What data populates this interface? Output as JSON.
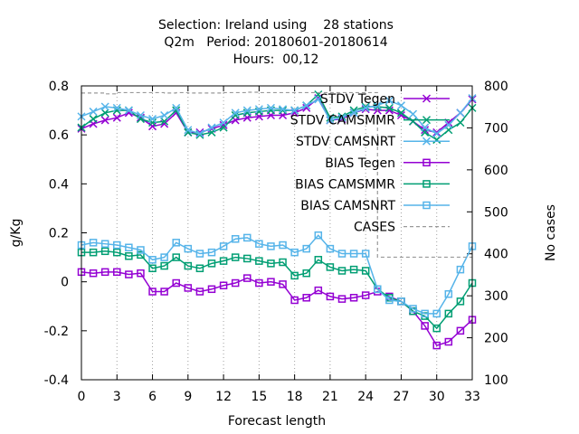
{
  "chart_data": {
    "type": "line",
    "title_lines": [
      "Selection: Ireland using    28 stations",
      "Q2m   Period: 20180601-20180614",
      "Hours:  00,12"
    ],
    "xlabel": "Forecast length",
    "ylabel": "g/Kg",
    "y2label": "No cases",
    "xlim": [
      0,
      33
    ],
    "ylim": [
      -0.4,
      0.8
    ],
    "y2lim": [
      100,
      800
    ],
    "x_ticks": [
      0,
      3,
      6,
      9,
      12,
      15,
      18,
      21,
      24,
      27,
      30,
      33
    ],
    "x_tick_labels": [
      "0",
      "3",
      "6",
      "9",
      "12",
      "15",
      "18",
      "21",
      "24",
      "27",
      "30",
      "33"
    ],
    "y_ticks": [
      -0.4,
      -0.2,
      0,
      0.2,
      0.4,
      0.6,
      0.8
    ],
    "y_tick_labels": [
      "-0.4",
      "-0.2",
      "0",
      "0.2",
      "0.4",
      "0.6",
      "0.8"
    ],
    "y2_ticks": [
      100,
      200,
      300,
      400,
      500,
      600,
      700,
      800
    ],
    "y2_tick_labels": [
      "100",
      "200",
      "300",
      "400",
      "500",
      "600",
      "700",
      "800"
    ],
    "legend_position": "top-right",
    "x": [
      0,
      1,
      2,
      3,
      4,
      5,
      6,
      7,
      8,
      9,
      10,
      11,
      12,
      13,
      14,
      15,
      16,
      17,
      18,
      19,
      20,
      21,
      22,
      23,
      24,
      25,
      26,
      27,
      28,
      29,
      30,
      31,
      32,
      33
    ],
    "series": [
      {
        "name": "STDV Tegen",
        "color": "#9400d3",
        "marker": "x",
        "axis": "y",
        "values": [
          0.625,
          0.645,
          0.66,
          0.67,
          0.69,
          0.67,
          0.635,
          0.645,
          0.69,
          0.61,
          0.61,
          0.625,
          0.64,
          0.66,
          0.67,
          0.675,
          0.68,
          0.68,
          0.69,
          0.71,
          0.75,
          0.66,
          0.665,
          0.69,
          0.705,
          0.7,
          0.7,
          0.68,
          0.655,
          0.62,
          0.61,
          0.65,
          0.69,
          0.745
        ]
      },
      {
        "name": "STDV CAMSMMR",
        "color": "#009e73",
        "marker": "x",
        "axis": "y",
        "values": [
          0.63,
          0.665,
          0.69,
          0.7,
          0.7,
          0.665,
          0.65,
          0.655,
          0.7,
          0.61,
          0.6,
          0.61,
          0.63,
          0.68,
          0.69,
          0.695,
          0.7,
          0.7,
          0.7,
          0.72,
          0.765,
          0.67,
          0.675,
          0.7,
          0.715,
          0.715,
          0.71,
          0.69,
          0.655,
          0.61,
          0.58,
          0.62,
          0.65,
          0.71
        ]
      },
      {
        "name": "STDV CAMSNRT",
        "color": "#56b4e9",
        "marker": "x",
        "axis": "y",
        "values": [
          0.675,
          0.695,
          0.715,
          0.71,
          0.7,
          0.68,
          0.665,
          0.68,
          0.71,
          0.62,
          0.605,
          0.63,
          0.65,
          0.69,
          0.7,
          0.705,
          0.71,
          0.705,
          0.7,
          0.72,
          0.745,
          0.66,
          0.67,
          0.69,
          0.71,
          0.72,
          0.74,
          0.72,
          0.685,
          0.63,
          0.605,
          0.64,
          0.69,
          0.75
        ]
      },
      {
        "name": "BIAS Tegen",
        "color": "#9400d3",
        "marker": "square",
        "axis": "y",
        "values": [
          0.04,
          0.035,
          0.04,
          0.04,
          0.03,
          0.035,
          -0.04,
          -0.04,
          -0.005,
          -0.025,
          -0.04,
          -0.03,
          -0.015,
          -0.005,
          0.015,
          -0.005,
          0.0,
          -0.01,
          -0.075,
          -0.065,
          -0.035,
          -0.06,
          -0.07,
          -0.065,
          -0.055,
          -0.04,
          -0.06,
          -0.08,
          -0.12,
          -0.18,
          -0.26,
          -0.245,
          -0.2,
          -0.155
        ]
      },
      {
        "name": "BIAS CAMSMMR",
        "color": "#009e73",
        "marker": "square",
        "axis": "y",
        "values": [
          0.12,
          0.12,
          0.125,
          0.12,
          0.105,
          0.11,
          0.055,
          0.065,
          0.1,
          0.065,
          0.055,
          0.075,
          0.085,
          0.1,
          0.095,
          0.085,
          0.075,
          0.08,
          0.025,
          0.035,
          0.09,
          0.06,
          0.045,
          0.05,
          0.045,
          -0.03,
          -0.065,
          -0.08,
          -0.12,
          -0.14,
          -0.19,
          -0.13,
          -0.08,
          -0.005
        ]
      },
      {
        "name": "BIAS CAMSNRT",
        "color": "#56b4e9",
        "marker": "square",
        "axis": "y",
        "values": [
          0.15,
          0.16,
          0.155,
          0.15,
          0.14,
          0.13,
          0.09,
          0.1,
          0.16,
          0.135,
          0.115,
          0.12,
          0.145,
          0.175,
          0.18,
          0.155,
          0.145,
          0.15,
          0.12,
          0.135,
          0.19,
          0.135,
          0.115,
          0.115,
          0.115,
          -0.03,
          -0.075,
          -0.08,
          -0.11,
          -0.13,
          -0.13,
          -0.05,
          0.05,
          0.145
        ]
      },
      {
        "name": "CASES",
        "color": "#999999",
        "marker": "none",
        "dashed": true,
        "axis": "y2",
        "values": [
          783,
          783,
          781,
          784,
          784,
          784,
          784,
          783,
          784,
          783,
          783,
          783,
          784,
          784,
          785,
          784,
          784,
          784,
          784,
          784,
          784,
          784,
          784,
          784,
          784,
          392,
          392,
          392,
          392,
          392,
          392,
          392,
          392,
          392
        ]
      }
    ]
  }
}
